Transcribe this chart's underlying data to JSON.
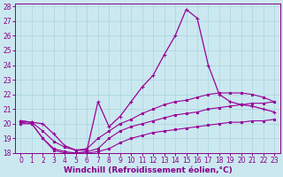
{
  "background_color": "#cbe8f0",
  "grid_color": "#aed8e0",
  "line_color": "#990099",
  "xlabel": "Windchill (Refroidissement éolien,°C)",
  "xlim": [
    -0.5,
    23.5
  ],
  "ylim": [
    18,
    28.2
  ],
  "yticks": [
    18,
    19,
    20,
    21,
    22,
    23,
    24,
    25,
    26,
    27,
    28
  ],
  "xticks": [
    0,
    1,
    2,
    3,
    4,
    5,
    6,
    7,
    8,
    9,
    10,
    11,
    12,
    13,
    14,
    15,
    16,
    17,
    18,
    19,
    20,
    21,
    22,
    23
  ],
  "curves": [
    {
      "x": [
        0,
        1,
        2,
        3,
        4,
        5,
        6,
        7,
        8,
        9,
        10,
        11,
        12,
        13,
        14,
        15,
        16,
        17,
        18,
        19,
        20,
        21,
        22,
        23
      ],
      "y": [
        20.0,
        20.0,
        19.0,
        18.2,
        18.0,
        18.0,
        18.0,
        18.1,
        18.3,
        18.7,
        19.0,
        19.2,
        19.4,
        19.5,
        19.6,
        19.7,
        19.8,
        19.9,
        20.0,
        20.1,
        20.1,
        20.2,
        20.2,
        20.3
      ],
      "marker": "s",
      "markersize": 1.5,
      "lw": 0.8
    },
    {
      "x": [
        0,
        1,
        2,
        3,
        4,
        5,
        6,
        7,
        8,
        9,
        10,
        11,
        12,
        13,
        14,
        15,
        16,
        17,
        18,
        19,
        20,
        21,
        22,
        23
      ],
      "y": [
        20.1,
        20.0,
        19.0,
        18.3,
        18.1,
        18.0,
        18.1,
        18.3,
        19.0,
        19.5,
        19.8,
        20.0,
        20.2,
        20.4,
        20.6,
        20.7,
        20.8,
        21.0,
        21.1,
        21.2,
        21.3,
        21.4,
        21.4,
        21.5
      ],
      "marker": "s",
      "markersize": 1.5,
      "lw": 0.8
    },
    {
      "x": [
        0,
        1,
        2,
        3,
        4,
        5,
        6,
        7,
        8,
        9,
        10,
        11,
        12,
        13,
        14,
        15,
        16,
        17,
        18,
        19,
        20,
        21,
        22,
        23
      ],
      "y": [
        20.2,
        20.1,
        19.5,
        18.8,
        18.4,
        18.2,
        18.3,
        19.0,
        19.5,
        20.0,
        20.3,
        20.7,
        21.0,
        21.3,
        21.5,
        21.6,
        21.8,
        22.0,
        22.1,
        22.1,
        22.1,
        22.0,
        21.8,
        21.5
      ],
      "marker": "s",
      "markersize": 1.5,
      "lw": 0.8
    },
    {
      "x": [
        0,
        1,
        2,
        3,
        4,
        5,
        6,
        7,
        8,
        9,
        10,
        11,
        12,
        13,
        14,
        15,
        16,
        17,
        18,
        19,
        20,
        21,
        22,
        23
      ],
      "y": [
        20.2,
        20.1,
        20.0,
        19.3,
        18.5,
        18.2,
        18.2,
        21.5,
        19.8,
        20.5,
        21.5,
        22.5,
        23.3,
        24.7,
        26.0,
        27.8,
        27.2,
        24.0,
        22.0,
        21.5,
        21.3,
        21.2,
        21.0,
        20.8
      ],
      "marker": "+",
      "markersize": 3.5,
      "lw": 0.9
    }
  ]
}
